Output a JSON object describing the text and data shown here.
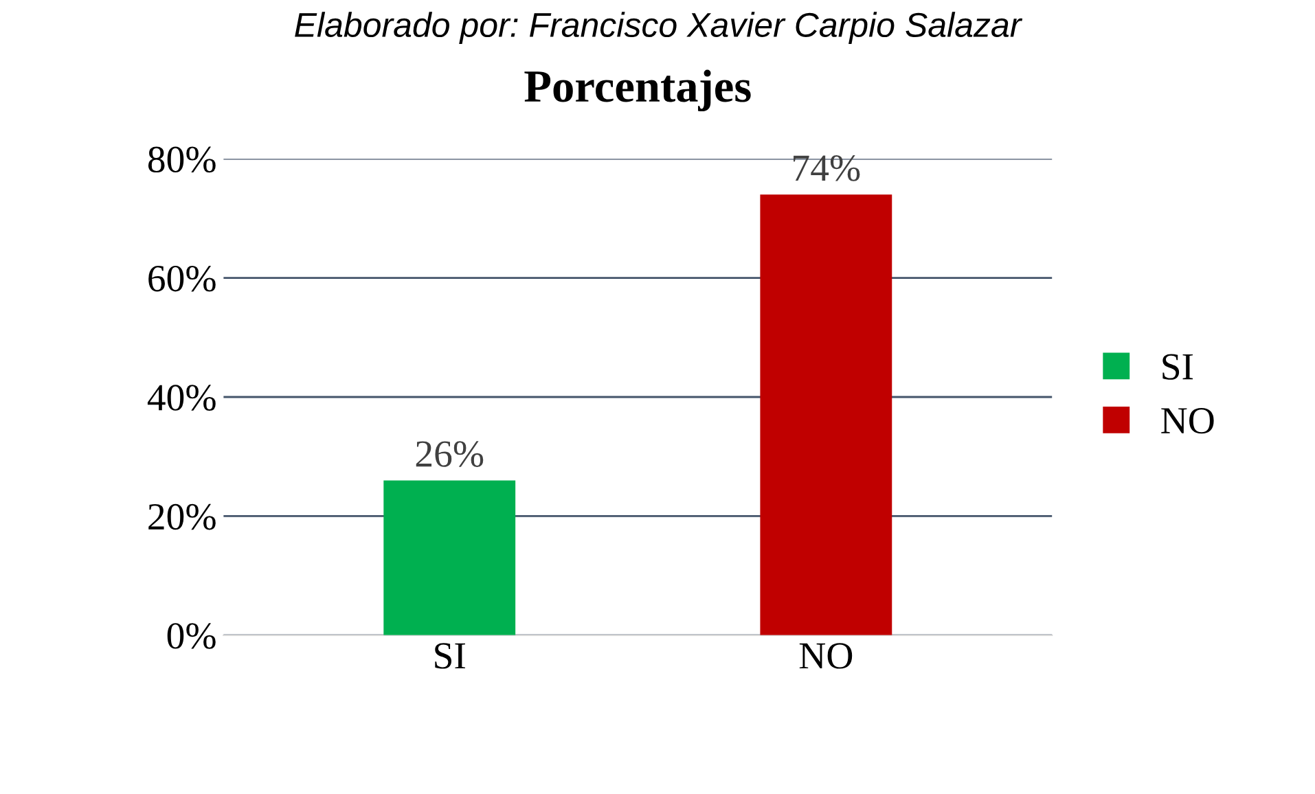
{
  "chart_data": {
    "type": "bar",
    "title": "Porcentajes",
    "annotations": [
      "Elaborado por: Francisco Xavier Carpio Salazar"
    ],
    "categories": [
      "SI",
      "NO"
    ],
    "series": [
      {
        "name": "SI",
        "color": "#00b050",
        "values": [
          26,
          null
        ],
        "value_labels": [
          "26%",
          null
        ]
      },
      {
        "name": "NO",
        "color": "#c00000",
        "values": [
          null,
          74
        ],
        "value_labels": [
          null,
          "74%"
        ]
      }
    ],
    "ylim": [
      0,
      80
    ],
    "yticks": [
      {
        "value": 0,
        "label": "0%"
      },
      {
        "value": 20,
        "label": "20%"
      },
      {
        "value": 40,
        "label": "40%"
      },
      {
        "value": 60,
        "label": "60%"
      },
      {
        "value": 80,
        "label": "80%"
      }
    ],
    "grid": "y",
    "legend": "right"
  }
}
